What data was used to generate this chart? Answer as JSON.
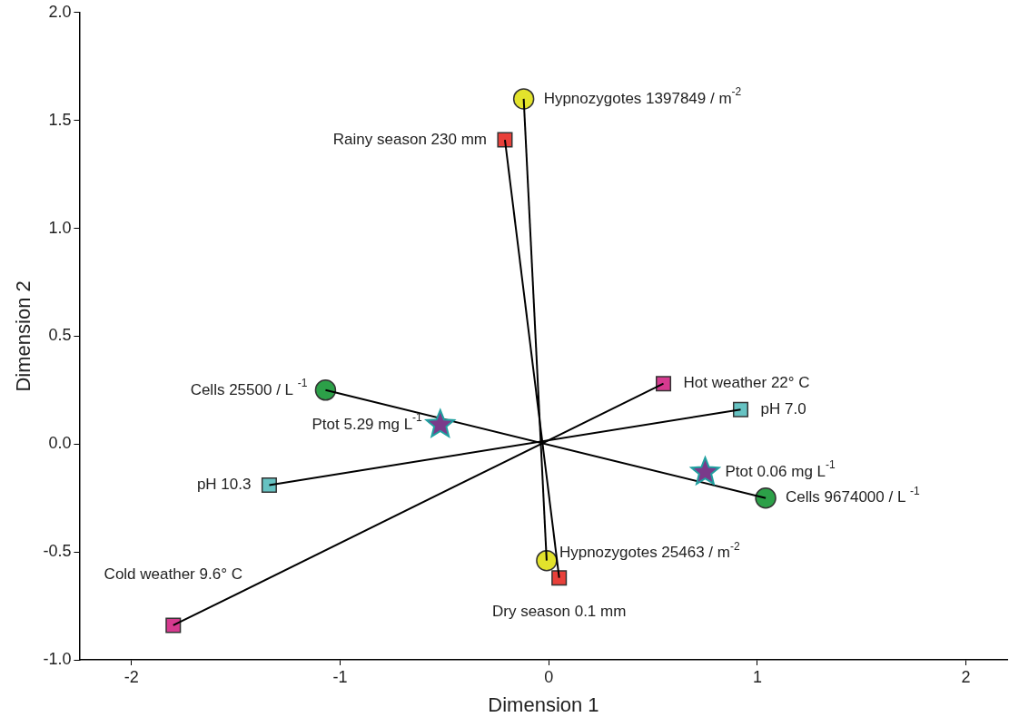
{
  "chart_data": {
    "type": "scatter",
    "xlabel": "Dimension 1",
    "ylabel": "Dimension 2",
    "xlim": [
      -2.25,
      2.2
    ],
    "xticks": [
      -2,
      -1,
      0,
      1,
      2
    ],
    "ylim": [
      -1,
      2
    ],
    "yticks": [
      {
        "value": -1,
        "label": "-1.0"
      },
      {
        "value": -0.5,
        "label": "-0.5"
      },
      {
        "value": 0,
        "label": "0.0"
      },
      {
        "value": 0.5,
        "label": "0.5"
      },
      {
        "value": 1,
        "label": "1.0"
      },
      {
        "value": 1.5,
        "label": "1.5"
      },
      {
        "value": 2,
        "label": "2.0"
      }
    ],
    "grid": false,
    "legend": false,
    "series": [
      {
        "type": "line",
        "marker": "none",
        "color": "#000000",
        "x": [
          -0.12,
          -0.01
        ],
        "values": [
          1.6,
          -0.54
        ]
      },
      {
        "type": "line",
        "marker": "none",
        "color": "#000000",
        "x": [
          -0.21,
          0.05
        ],
        "values": [
          1.41,
          -0.62
        ]
      },
      {
        "type": "line",
        "marker": "none",
        "color": "#000000",
        "x": [
          -1.07,
          1.04
        ],
        "values": [
          0.25,
          -0.25
        ]
      },
      {
        "type": "line",
        "marker": "none",
        "color": "#000000",
        "x": [
          -1.34,
          0.92
        ],
        "values": [
          -0.19,
          0.16
        ]
      },
      {
        "type": "line",
        "marker": "none",
        "color": "#000000",
        "x": [
          -1.8,
          0.55
        ],
        "values": [
          -0.84,
          0.28
        ]
      },
      {
        "name": "Hypnozygotes 1397849 / m$^{-2}$",
        "marker": "circle",
        "color": "#e3e32c",
        "x": [
          -0.12
        ],
        "values": [
          1.6
        ]
      },
      {
        "name": "Rainy season 230 mm",
        "marker": "square",
        "color": "#e8403a",
        "x": [
          -0.21
        ],
        "values": [
          1.41
        ]
      },
      {
        "name": "Cells 25500 / L $^{-1}$",
        "marker": "circle",
        "color": "#2ca048",
        "x": [
          -1.07
        ],
        "values": [
          0.25
        ]
      },
      {
        "name": "Ptot 5.29 mg L$^{-1}$",
        "marker": "star",
        "color": "#7a3a8a",
        "x": [
          -0.52
        ],
        "values": [
          0.09
        ]
      },
      {
        "name": "pH 10.3",
        "marker": "square",
        "color": "#66c2c2",
        "x": [
          -1.34
        ],
        "values": [
          -0.19
        ]
      },
      {
        "name": "Cold weather 9.6° C",
        "marker": "square",
        "color": "#d63a8f",
        "x": [
          -1.8
        ],
        "values": [
          -0.84
        ]
      },
      {
        "name": "Hypnozygotes 25463 / m$^{-2}$",
        "marker": "circle",
        "color": "#e3e32c",
        "x": [
          -0.01
        ],
        "values": [
          -0.54
        ]
      },
      {
        "name": "Dry season 0.1 mm",
        "marker": "square",
        "color": "#e8403a",
        "x": [
          0.05
        ],
        "values": [
          -0.62
        ]
      },
      {
        "name": "Hot weather 22° C",
        "marker": "square",
        "color": "#d63a8f",
        "x": [
          0.55
        ],
        "values": [
          0.28
        ]
      },
      {
        "name": "pH 7.0",
        "marker": "square",
        "color": "#66c2c2",
        "x": [
          0.92
        ],
        "values": [
          0.16
        ]
      },
      {
        "name": "Ptot 0.06 mg L$^{-1}$",
        "marker": "star",
        "color": "#7a3a8a",
        "x": [
          0.75
        ],
        "values": [
          -0.13
        ]
      },
      {
        "name": "Cells 9674000 / L $^{-1}$",
        "marker": "circle",
        "color": "#2ca048",
        "x": [
          1.04
        ],
        "values": [
          -0.25
        ]
      }
    ]
  }
}
